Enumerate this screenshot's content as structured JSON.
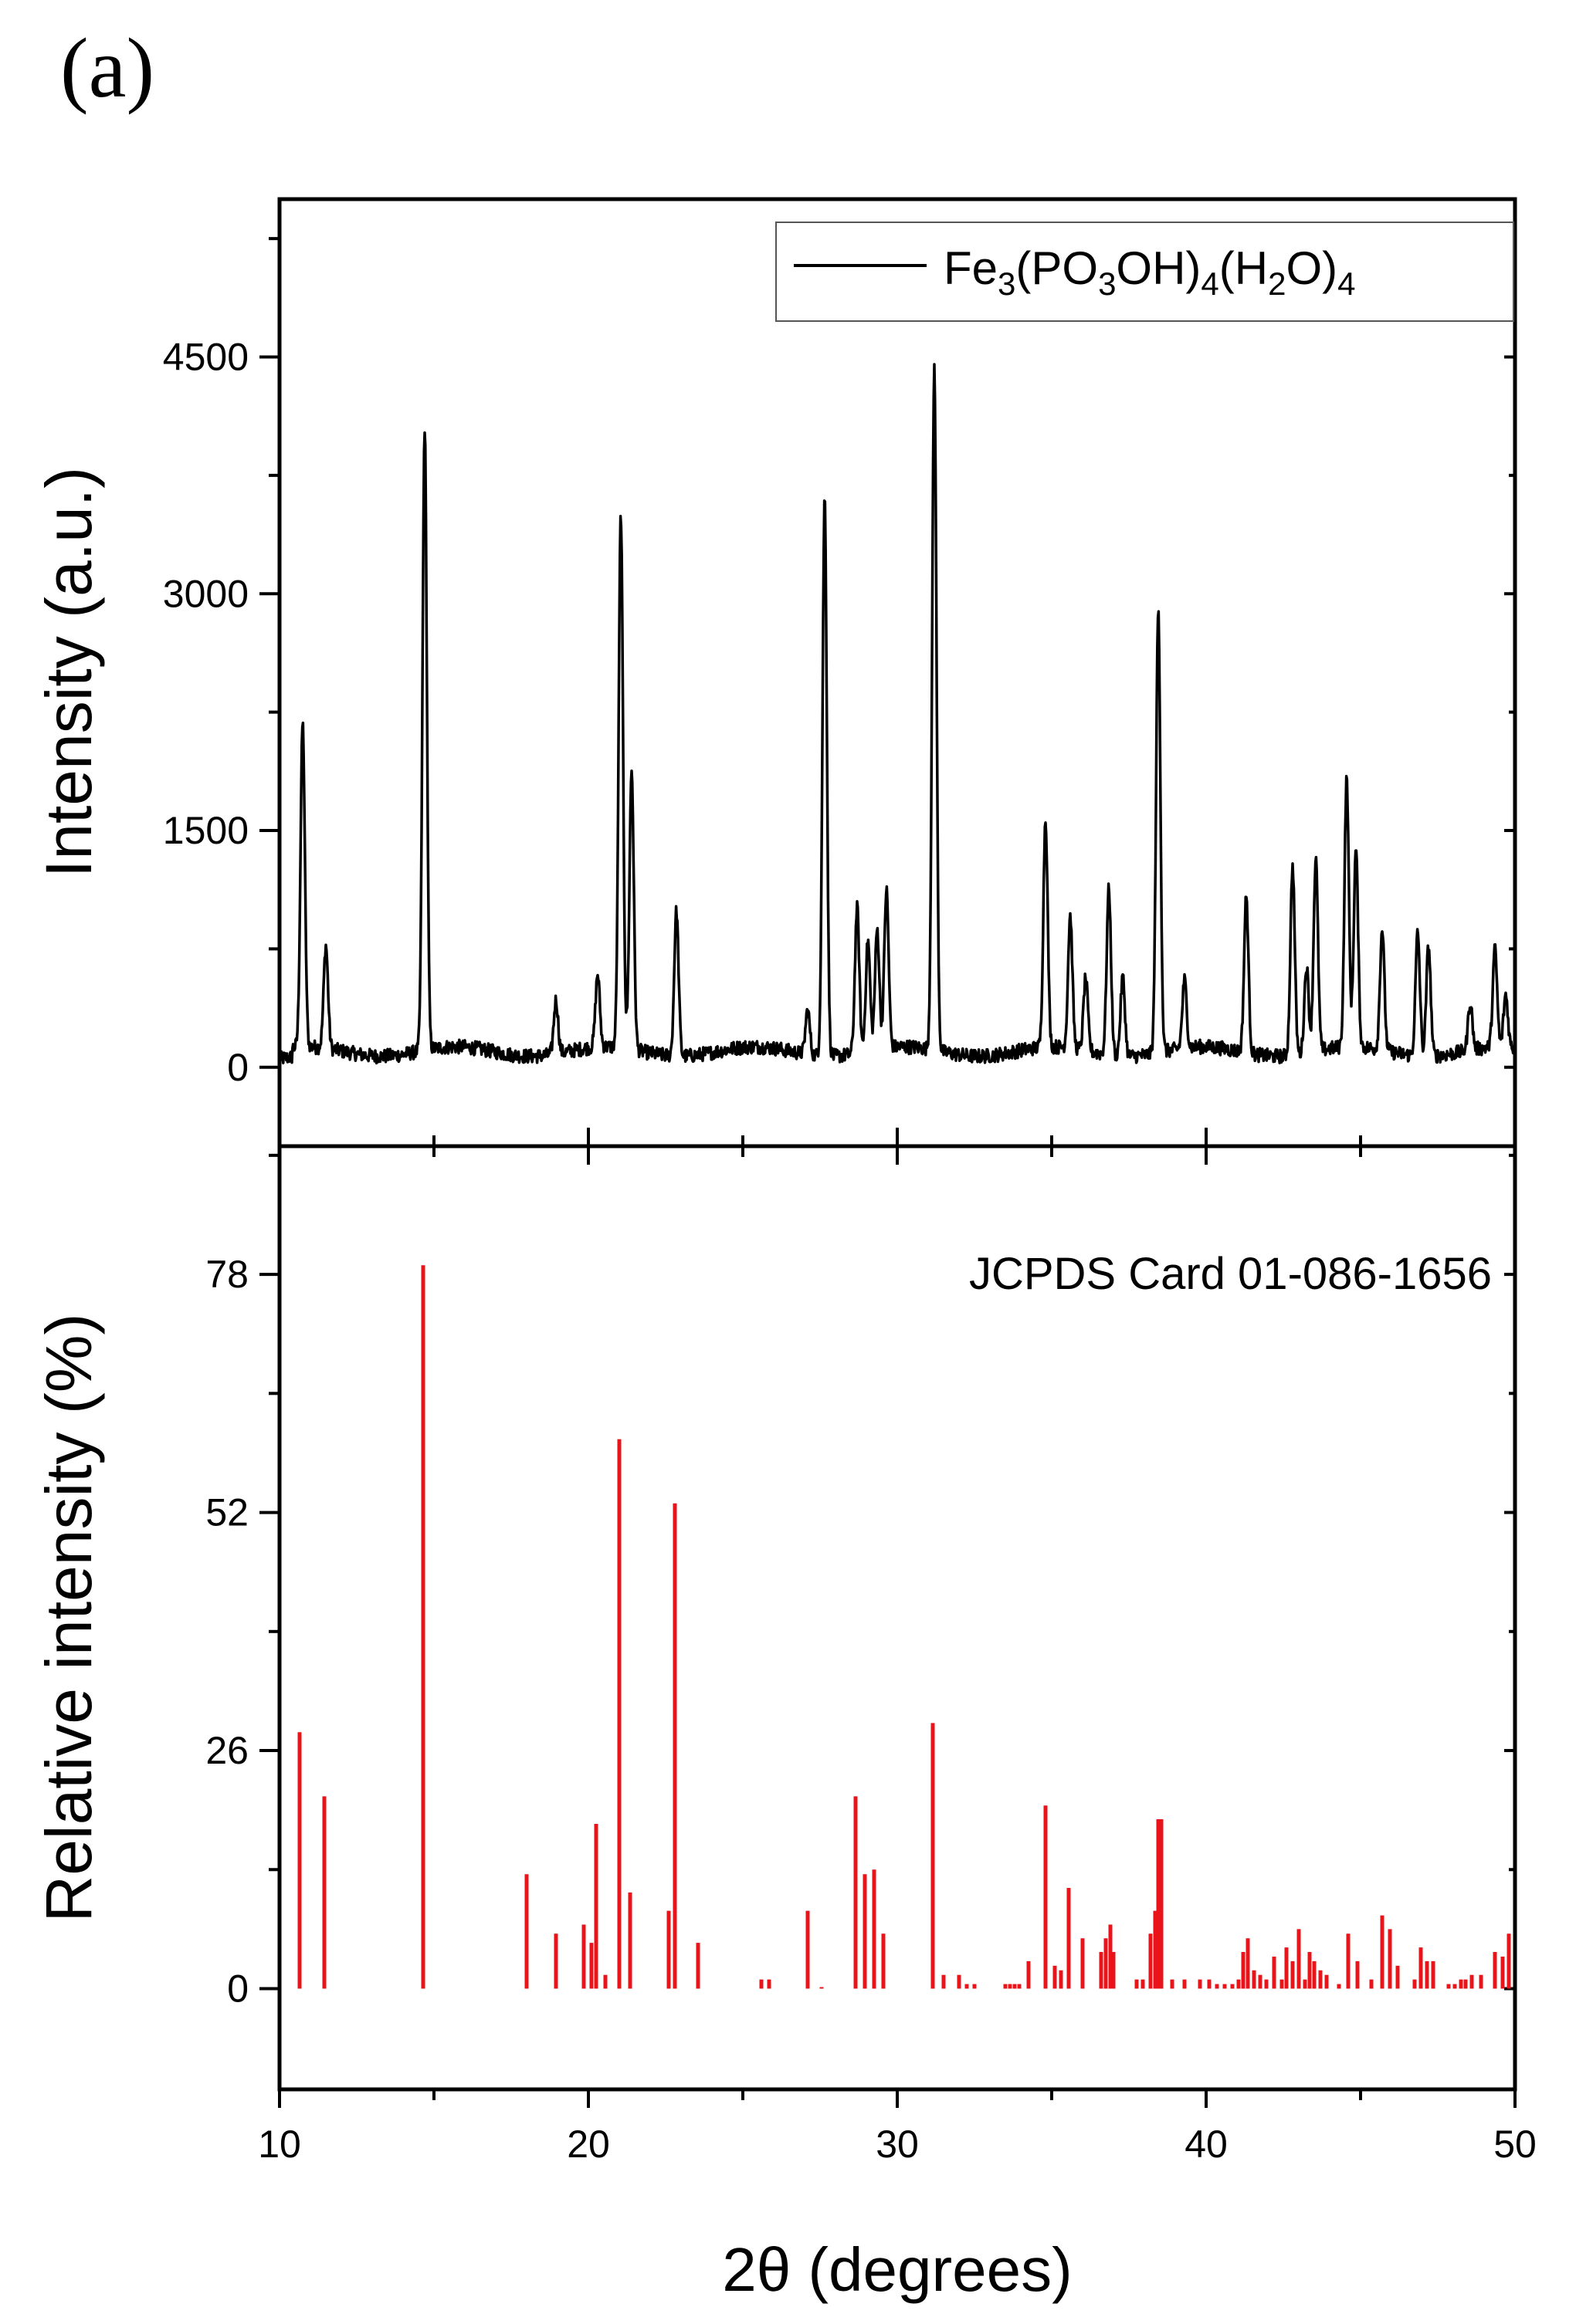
{
  "panel_label": "(a)",
  "x_title": "2θ (degrees)",
  "chart_data": [
    {
      "type": "line",
      "xlim": [
        10,
        50
      ],
      "ylim": [
        -500,
        5500
      ],
      "yticks": [
        0,
        1500,
        3000,
        4500
      ],
      "ytick_labels": [
        "0",
        "1500",
        "3000",
        "4500"
      ],
      "ylabel": "Intensity (a.u.)",
      "legend": {
        "placement": "top-right",
        "entry": {
          "base": "Fe",
          "parts": [
            [
              "3",
              "sub"
            ],
            [
              "(PO",
              ""
            ],
            [
              "3",
              "sub"
            ],
            [
              "OH)",
              ""
            ],
            [
              "4",
              "sub"
            ],
            [
              "(H",
              ""
            ],
            [
              "2",
              "sub"
            ],
            [
              "O)",
              ""
            ],
            [
              "4",
              "sub"
            ]
          ]
        },
        "text": "Fe3(PO3OH)4(H2O)4"
      },
      "color": "#000000",
      "baseline": 100,
      "peaks": [
        {
          "x": 10.75,
          "y": 2150
        },
        {
          "x": 11.5,
          "y": 750
        },
        {
          "x": 14.7,
          "y": 4050
        },
        {
          "x": 18.95,
          "y": 440
        },
        {
          "x": 20.3,
          "y": 560
        },
        {
          "x": 21.05,
          "y": 3480
        },
        {
          "x": 21.4,
          "y": 1870
        },
        {
          "x": 22.85,
          "y": 1020
        },
        {
          "x": 27.1,
          "y": 380
        },
        {
          "x": 27.65,
          "y": 3640
        },
        {
          "x": 28.7,
          "y": 1020
        },
        {
          "x": 29.05,
          "y": 800
        },
        {
          "x": 29.35,
          "y": 860
        },
        {
          "x": 29.65,
          "y": 1100
        },
        {
          "x": 31.2,
          "y": 4430
        },
        {
          "x": 34.8,
          "y": 1550
        },
        {
          "x": 35.6,
          "y": 940
        },
        {
          "x": 36.1,
          "y": 560
        },
        {
          "x": 36.85,
          "y": 1150
        },
        {
          "x": 37.3,
          "y": 600
        },
        {
          "x": 38.45,
          "y": 2900
        },
        {
          "x": 39.3,
          "y": 530
        },
        {
          "x": 41.3,
          "y": 1090
        },
        {
          "x": 42.8,
          "y": 1300
        },
        {
          "x": 43.25,
          "y": 650
        },
        {
          "x": 43.55,
          "y": 1320
        },
        {
          "x": 44.55,
          "y": 1800
        },
        {
          "x": 44.85,
          "y": 1350
        },
        {
          "x": 45.7,
          "y": 870
        },
        {
          "x": 46.85,
          "y": 880
        },
        {
          "x": 47.2,
          "y": 800
        },
        {
          "x": 48.55,
          "y": 400
        },
        {
          "x": 49.35,
          "y": 720
        },
        {
          "x": 49.7,
          "y": 430
        }
      ]
    },
    {
      "type": "bar",
      "xlim": [
        10,
        50
      ],
      "ylim": [
        -11,
        92
      ],
      "yticks": [
        0,
        26,
        52,
        78
      ],
      "ytick_labels": [
        "0",
        "26",
        "52",
        "78"
      ],
      "ylabel": "Relative intensity (%)",
      "annotation": "JCPDS Card 01-086-1656",
      "color": "#e8141a",
      "x": [
        10.65,
        11.45,
        14.65,
        18.0,
        18.95,
        19.85,
        20.1,
        20.25,
        20.55,
        21.0,
        21.35,
        22.6,
        22.8,
        23.55,
        25.6,
        25.85,
        27.1,
        27.55,
        28.65,
        28.95,
        29.25,
        29.55,
        31.15,
        31.5,
        32.0,
        32.25,
        32.5,
        33.5,
        33.65,
        33.8,
        33.95,
        34.25,
        34.8,
        35.1,
        35.3,
        35.55,
        36.0,
        36.6,
        36.75,
        36.9,
        37.0,
        37.75,
        37.95,
        38.2,
        38.35,
        38.45,
        38.55,
        38.9,
        39.3,
        39.8,
        40.1,
        40.35,
        40.6,
        40.85,
        41.05,
        41.2,
        41.35,
        41.55,
        41.75,
        41.95,
        42.2,
        42.45,
        42.6,
        42.8,
        43.0,
        43.2,
        43.35,
        43.5,
        43.7,
        43.9,
        44.3,
        44.6,
        44.9,
        45.35,
        45.7,
        45.95,
        46.2,
        46.75,
        46.95,
        47.15,
        47.35,
        47.85,
        48.05,
        48.25,
        48.4,
        48.6,
        48.9,
        49.35,
        49.6,
        49.8
      ],
      "values": [
        28,
        21,
        79,
        12.5,
        6,
        7,
        5,
        18,
        1.5,
        60,
        10.5,
        8.5,
        53,
        5,
        1,
        1,
        8.5,
        0,
        21,
        12.5,
        13,
        6,
        29,
        1.5,
        1.5,
        0.5,
        0.5,
        0.5,
        0.5,
        0.5,
        0.5,
        3,
        20,
        2.5,
        2,
        11,
        5.5,
        4,
        5.5,
        7,
        4,
        1,
        1,
        6,
        8.5,
        18.5,
        18.5,
        1,
        1,
        1,
        1,
        0.5,
        0.5,
        0.5,
        1,
        4,
        5.5,
        2,
        1.5,
        1,
        3.5,
        1,
        4.5,
        3,
        6.5,
        1,
        4,
        3,
        2,
        1.5,
        0.5,
        6,
        3,
        1,
        8,
        6.5,
        2.5,
        1,
        4.5,
        3,
        3,
        0.5,
        0.5,
        1,
        1,
        1.5,
        1.5,
        4,
        3.5,
        6
      ]
    }
  ],
  "x_axis": {
    "ticks": [
      10,
      20,
      30,
      40,
      50
    ],
    "tick_labels": [
      "10",
      "20",
      "30",
      "40",
      "50"
    ]
  }
}
